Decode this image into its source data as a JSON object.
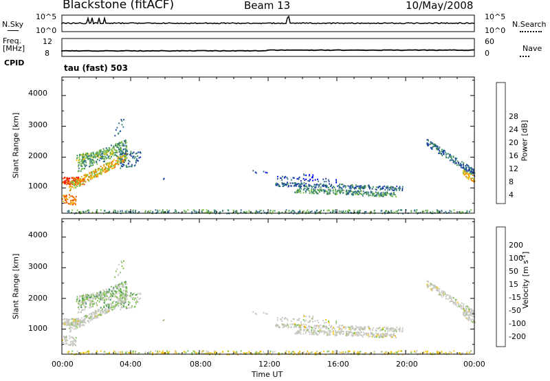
{
  "header": {
    "station": "Blackstone (fitACF)",
    "beam": "Beam 13",
    "date": "10/May/2008"
  },
  "status_panels": {
    "nsky_label": "N.Sky",
    "nsky_ticks": [
      "10^5",
      "10^0"
    ],
    "nsearch_label": "N.Search",
    "nsearch_ticks": [
      "10^5",
      "10^0"
    ],
    "freq_label_1": "Freq.",
    "freq_label_2": "[MHz]",
    "freq_ticks": [
      "12",
      "8"
    ],
    "nave_label": "Nave",
    "nave_ticks": [
      "60",
      "0"
    ],
    "cpid_label": "CPID",
    "cpid_text": "tau (fast) 503"
  },
  "chart_data": [
    {
      "type": "heatmap",
      "name": "power",
      "ylabel": "Slant Range [km]",
      "xlabel": "",
      "ylim": [
        180,
        4600
      ],
      "yticks": [
        1000,
        2000,
        3000,
        4000
      ],
      "colorbar": {
        "label": "Power [dB]",
        "ticks": [
          "28",
          "24",
          "20",
          "16",
          "12",
          "8",
          "4"
        ],
        "colors": [
          "#0000ff",
          "#1a3aa8",
          "#2f6b8f",
          "#3c8c5a",
          "#7dc04a",
          "#f0c000",
          "#f08000",
          "#f04000",
          "#ff0000"
        ]
      }
    },
    {
      "type": "heatmap",
      "name": "velocity",
      "ylabel": "Slant Range [km]",
      "xlabel": "Time UT",
      "ylim": [
        180,
        4600
      ],
      "yticks": [
        1000,
        2000,
        3000,
        4000
      ],
      "xticks": [
        "00:00",
        "04:00",
        "08:00",
        "12:00",
        "16:00",
        "20:00",
        "00:00"
      ],
      "colorbar": {
        "label": "Velocity [m s",
        "label_sup": "-1",
        "label_end": "]",
        "ticks": [
          "200",
          "100",
          "50",
          "15",
          "-15",
          "-50",
          "-100",
          "-200"
        ],
        "colors": [
          "#2040a0",
          "#2f6b7a",
          "#3c8c5a",
          "#7dc04a",
          "#c8c8c0",
          "#f0c000",
          "#f08000",
          "#f04000",
          "#ff0000"
        ]
      }
    }
  ]
}
